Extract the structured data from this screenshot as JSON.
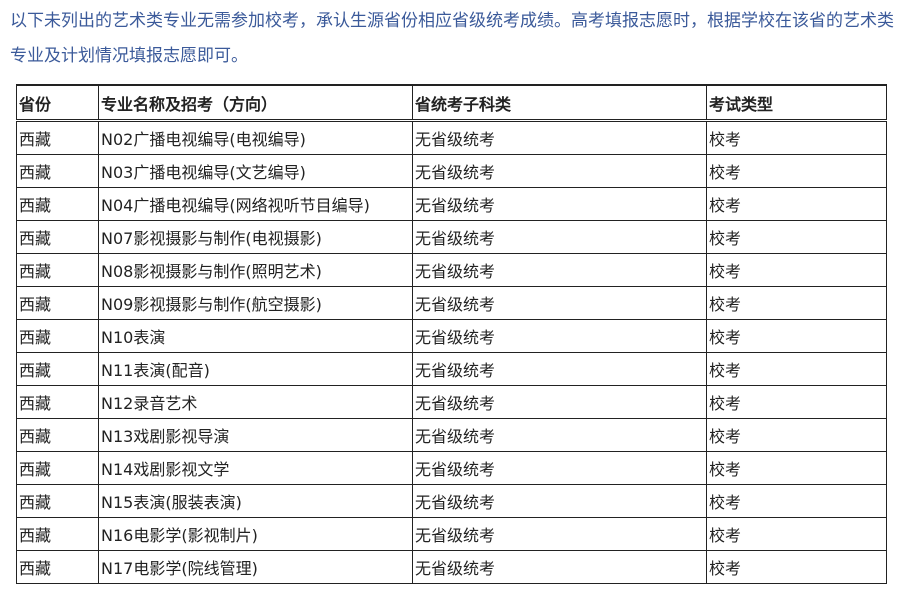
{
  "intro": "以下未列出的艺术类专业无需参加校考，承认生源省份相应省级统考成绩。高考填报志愿时，根据学校在该省的艺术类专业及计划情况填报志愿即可。",
  "table": {
    "headers": [
      "省份",
      "专业名称及招考（方向）",
      "省统考子科类",
      "考试类型"
    ],
    "rows": [
      [
        "西藏",
        "N02广播电视编导(电视编导)",
        "无省级统考",
        "校考"
      ],
      [
        "西藏",
        "N03广播电视编导(文艺编导)",
        "无省级统考",
        "校考"
      ],
      [
        "西藏",
        "N04广播电视编导(网络视听节目编导)",
        "无省级统考",
        "校考"
      ],
      [
        "西藏",
        "N07影视摄影与制作(电视摄影)",
        "无省级统考",
        "校考"
      ],
      [
        "西藏",
        "N08影视摄影与制作(照明艺术)",
        "无省级统考",
        "校考"
      ],
      [
        "西藏",
        "N09影视摄影与制作(航空摄影)",
        "无省级统考",
        "校考"
      ],
      [
        "西藏",
        "N10表演",
        "无省级统考",
        "校考"
      ],
      [
        "西藏",
        "N11表演(配音)",
        "无省级统考",
        "校考"
      ],
      [
        "西藏",
        "N12录音艺术",
        "无省级统考",
        "校考"
      ],
      [
        "西藏",
        "N13戏剧影视导演",
        "无省级统考",
        "校考"
      ],
      [
        "西藏",
        "N14戏剧影视文学",
        "无省级统考",
        "校考"
      ],
      [
        "西藏",
        "N15表演(服装表演)",
        "无省级统考",
        "校考"
      ],
      [
        "西藏",
        "N16电影学(影视制片)",
        "无省级统考",
        "校考"
      ],
      [
        "西藏",
        "N17电影学(院线管理)",
        "无省级统考",
        "校考"
      ]
    ]
  }
}
